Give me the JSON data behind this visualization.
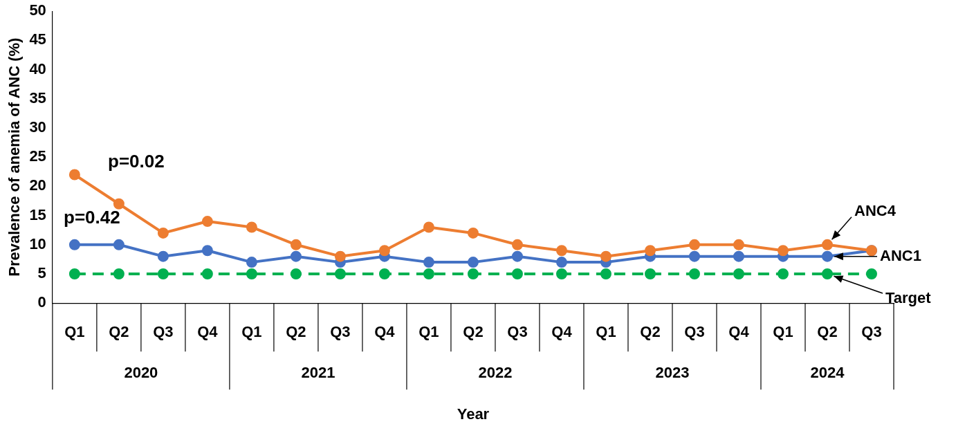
{
  "chart_data": {
    "type": "line",
    "xlabel": "Year",
    "ylabel": "Prevalence of anemia of ANC (%)",
    "categories": [
      "Q1",
      "Q2",
      "Q3",
      "Q4",
      "Q1",
      "Q2",
      "Q3",
      "Q4",
      "Q1",
      "Q2",
      "Q3",
      "Q4",
      "Q1",
      "Q2",
      "Q3",
      "Q4",
      "Q1",
      "Q2",
      "Q3"
    ],
    "series": [
      {
        "name": "ANC4",
        "color": "#ed7d31",
        "values": [
          22,
          17,
          12,
          14,
          13,
          10,
          8,
          9,
          13,
          12,
          10,
          9,
          8,
          9,
          10,
          10,
          9,
          10,
          9
        ]
      },
      {
        "name": "ANC1",
        "color": "#4472c4",
        "values": [
          10,
          10,
          8,
          9,
          7,
          8,
          7,
          8,
          7,
          7,
          8,
          7,
          7,
          8,
          8,
          8,
          8,
          8,
          9
        ]
      },
      {
        "name": "Target",
        "color": "#00b050",
        "line_style": "dashed",
        "values": [
          5,
          5,
          5,
          5,
          5,
          5,
          5,
          5,
          5,
          5,
          5,
          5,
          5,
          5,
          5,
          5,
          5,
          5,
          5
        ]
      }
    ],
    "ylim": [
      0,
      50
    ],
    "yticks": [
      0,
      5,
      10,
      15,
      20,
      25,
      30,
      35,
      40,
      45,
      50
    ],
    "grid": false,
    "legend": false,
    "marker": "circle",
    "annotations": [
      "2020",
      "2021",
      "2022",
      "2023",
      "2024",
      "p=0.02",
      "p=0.42"
    ]
  }
}
